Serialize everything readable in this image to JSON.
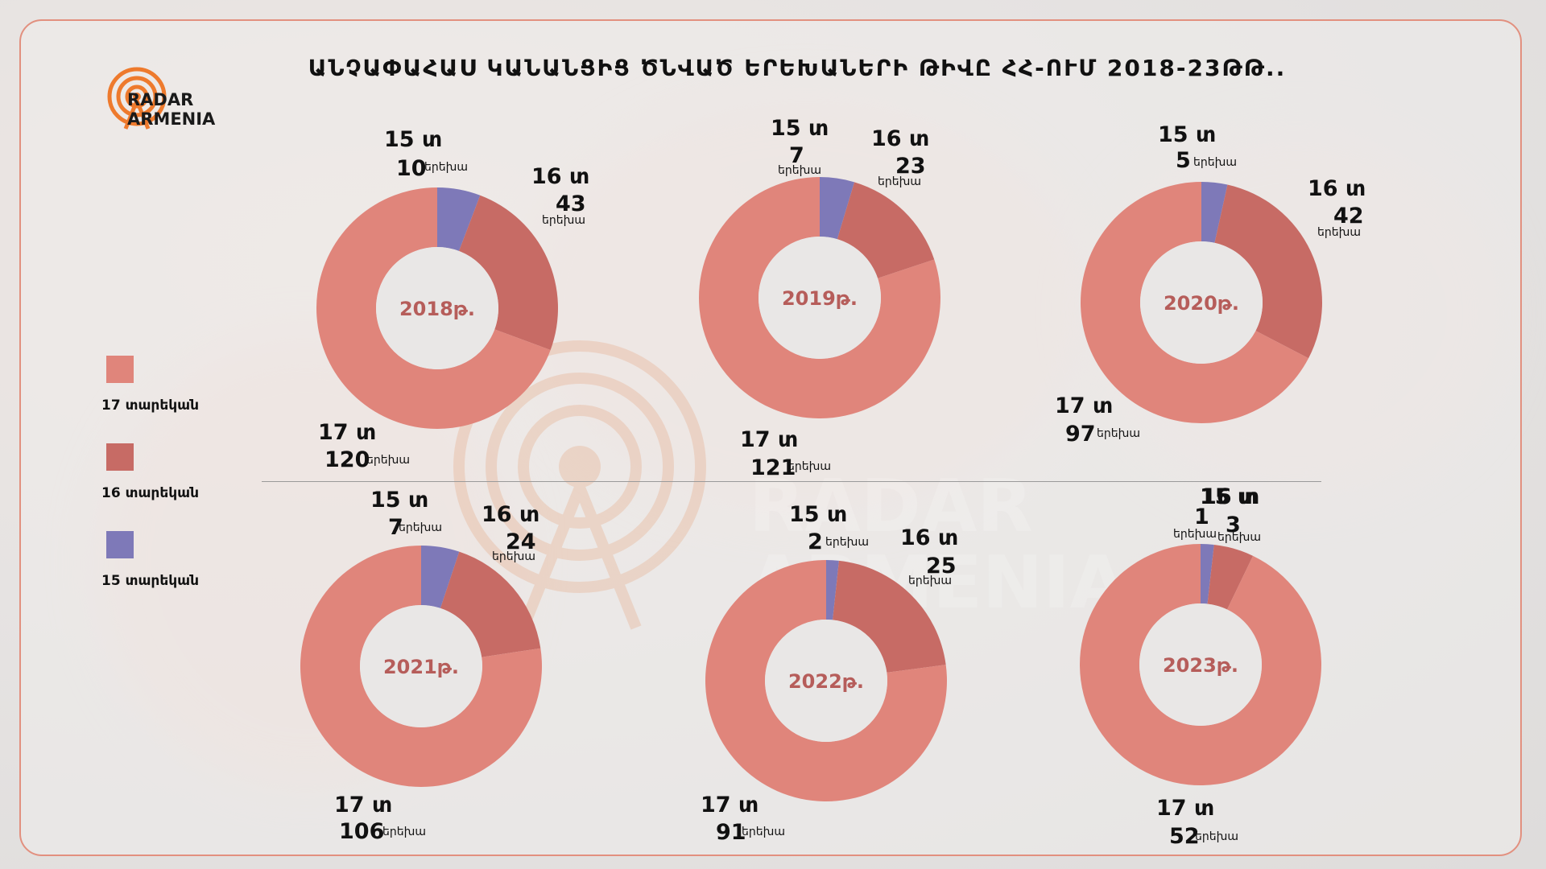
{
  "brand": {
    "line1": "RADAR",
    "line2": "ARMENIA"
  },
  "title": "ԱՆՉԱՓԱՀԱՍ ԿԱՆԱՆՑԻՑ ԾՆՎԱԾ ԵՐԵԽԱՆԵՐԻ ԹԻՎԸ ՀՀ-ՈՒՄ 2018-23ԹԹ..",
  "legend": [
    {
      "label": "17 տարեկան",
      "color": "#e0857b"
    },
    {
      "label": "16 տարեկան",
      "color": "#c76b65"
    },
    {
      "label": "15 տարեկան",
      "color": "#7e79b8"
    }
  ],
  "unit_label": "երեխա",
  "colors": {
    "age17": "#e0857b",
    "age16": "#c76b65",
    "age15": "#7e79b8",
    "center_text": "#b65d5a",
    "frame": "#e2907f"
  },
  "chart_data": [
    {
      "type": "pie",
      "center_label": "2018թ.",
      "slices": [
        {
          "label": "15 տ",
          "value": 10
        },
        {
          "label": "16 տ",
          "value": 43
        },
        {
          "label": "17 տ",
          "value": 120
        }
      ]
    },
    {
      "type": "pie",
      "center_label": "2019թ.",
      "slices": [
        {
          "label": "15 տ",
          "value": 7
        },
        {
          "label": "16 տ",
          "value": 23
        },
        {
          "label": "17 տ",
          "value": 121
        }
      ]
    },
    {
      "type": "pie",
      "center_label": "2020թ.",
      "slices": [
        {
          "label": "15 տ",
          "value": 5
        },
        {
          "label": "16 տ",
          "value": 42
        },
        {
          "label": "17 տ",
          "value": 97
        }
      ]
    },
    {
      "type": "pie",
      "center_label": "2021թ.",
      "slices": [
        {
          "label": "15 տ",
          "value": 7
        },
        {
          "label": "16 տ",
          "value": 24
        },
        {
          "label": "17 տ",
          "value": 106
        }
      ]
    },
    {
      "type": "pie",
      "center_label": "2022թ.",
      "slices": [
        {
          "label": "15 տ",
          "value": 2
        },
        {
          "label": "16 տ",
          "value": 25
        },
        {
          "label": "17 տ",
          "value": 91
        }
      ]
    },
    {
      "type": "pie",
      "center_label": "2023թ.",
      "slices": [
        {
          "label": "15 տ",
          "value": 1
        },
        {
          "label": "16 տ",
          "value": 3
        },
        {
          "label": "17 տ",
          "value": 52
        }
      ]
    }
  ]
}
